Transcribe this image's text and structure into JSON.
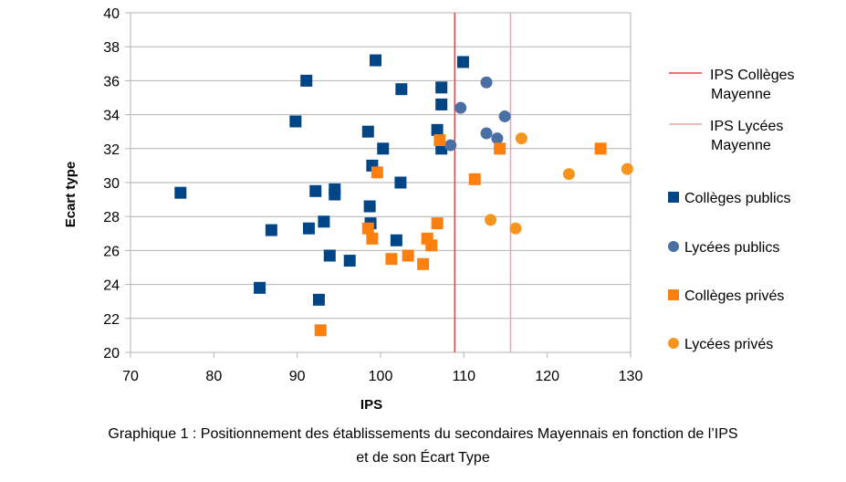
{
  "caption": {
    "line1": "Graphique 1 : Positionnement des établissements du secondaires Mayennais en fonction de l’IPS",
    "line2": "et de son Écart Type"
  },
  "chart_data": {
    "type": "scatter",
    "xlabel": "IPS",
    "ylabel": "Ecart type",
    "xlim": [
      70,
      130
    ],
    "ylim": [
      20,
      40
    ],
    "x_ticks": [
      70,
      80,
      90,
      100,
      110,
      120,
      130
    ],
    "y_ticks": [
      20,
      22,
      24,
      26,
      28,
      30,
      32,
      34,
      36,
      38,
      40
    ],
    "grid": "horizontal",
    "legend_position": "right",
    "reference_lines": [
      {
        "name": "IPS Collèges Mayenne",
        "name_lines": [
          "IPS Collèges",
          "Mayenne"
        ],
        "x": 108.9,
        "color": "#e2454a"
      },
      {
        "name": "IPS Lycées Mayenne",
        "name_lines": [
          "IPS Lycées",
          "Mayenne"
        ],
        "x": 115.6,
        "color": "#f2a0a3"
      }
    ],
    "series": [
      {
        "name": "Collèges publics",
        "marker": "square",
        "color": "#004586",
        "points": [
          [
            76,
            29.4
          ],
          [
            85.5,
            23.8
          ],
          [
            86.9,
            27.2
          ],
          [
            89.8,
            33.6
          ],
          [
            91.1,
            36.0
          ],
          [
            91.4,
            27.3
          ],
          [
            92.2,
            29.5
          ],
          [
            92.6,
            23.1
          ],
          [
            93.2,
            27.7
          ],
          [
            93.9,
            25.7
          ],
          [
            94.5,
            29.6
          ],
          [
            94.5,
            29.3
          ],
          [
            96.3,
            25.4
          ],
          [
            98.5,
            33.0
          ],
          [
            98.7,
            28.6
          ],
          [
            98.8,
            27.6
          ],
          [
            99.0,
            31.0
          ],
          [
            99.4,
            37.2
          ],
          [
            100.3,
            32.0
          ],
          [
            101.9,
            26.6
          ],
          [
            102.4,
            30.0
          ],
          [
            102.5,
            35.5
          ],
          [
            106.8,
            33.1
          ],
          [
            107.3,
            35.6
          ],
          [
            107.3,
            34.6
          ],
          [
            107.3,
            32.0
          ],
          [
            109.9,
            37.1
          ]
        ]
      },
      {
        "name": "Lycées publics",
        "marker": "circle",
        "color": "#4a6fa5",
        "points": [
          [
            108.4,
            32.2
          ],
          [
            109.6,
            34.4
          ],
          [
            112.7,
            32.9
          ],
          [
            112.7,
            35.9
          ],
          [
            114.0,
            32.6
          ],
          [
            114.9,
            33.9
          ]
        ]
      },
      {
        "name": "Collèges privés",
        "marker": "square",
        "color": "#ff7f0e",
        "points": [
          [
            92.8,
            21.3
          ],
          [
            98.5,
            27.3
          ],
          [
            99.0,
            26.7
          ],
          [
            99.6,
            30.6
          ],
          [
            101.3,
            25.5
          ],
          [
            103.3,
            25.7
          ],
          [
            105.1,
            25.2
          ],
          [
            105.6,
            26.7
          ],
          [
            106.1,
            26.3
          ],
          [
            106.8,
            27.6
          ],
          [
            107.1,
            32.5
          ],
          [
            111.3,
            30.2
          ],
          [
            114.3,
            32.0
          ],
          [
            126.4,
            32.0
          ]
        ]
      },
      {
        "name": "Lycées privés",
        "marker": "circle",
        "color": "#f7941d",
        "points": [
          [
            113.2,
            27.8
          ],
          [
            116.2,
            27.3
          ],
          [
            116.9,
            32.6
          ],
          [
            122.6,
            30.5
          ],
          [
            129.6,
            30.8
          ]
        ]
      }
    ]
  }
}
